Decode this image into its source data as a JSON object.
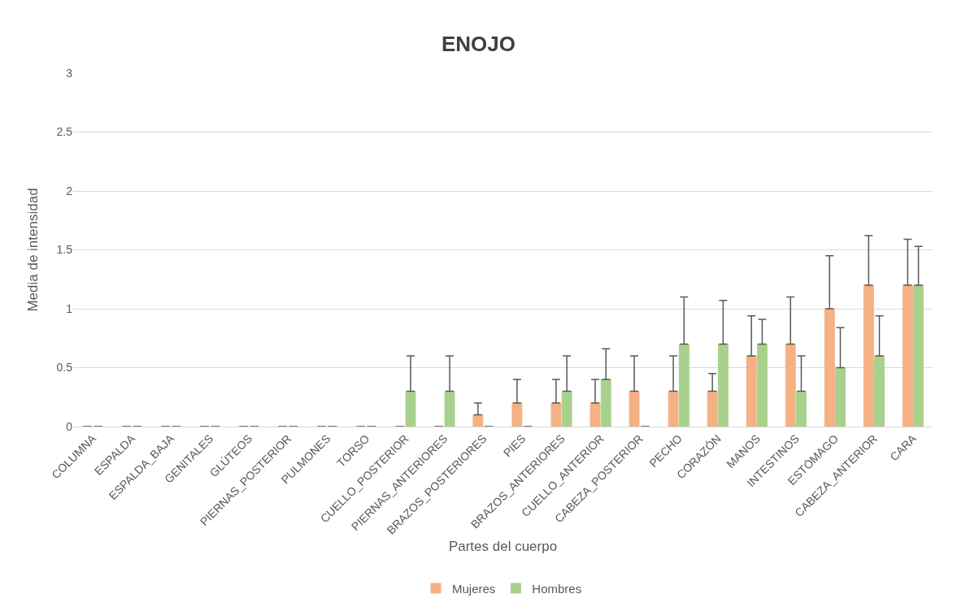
{
  "chart_data": {
    "type": "bar",
    "title": "ENOJO",
    "xlabel": "Partes del cuerpo",
    "ylabel": "Media de intensidad",
    "categories": [
      "COLUMNA",
      "ESPALDA",
      "ESPALDA_BAJA",
      "GENITALES",
      "GLÚTEOS",
      "PIERNAS_POSTERIOR",
      "PULMONES",
      "TORSO",
      "CUELLO_POSTERIOR",
      "PIERNAS_ANTERIORES",
      "BRAZOS_POSTERIORES",
      "PIES",
      "BRAZOS_ANTERIORES",
      "CUELLO_ANTERIOR",
      "CABEZA_POSTERIOR",
      "PECHO",
      "CORAZÓN",
      "MANOS",
      "INTESTINOS",
      "ESTÓMAGO",
      "CABEZA_ANTERIOR",
      "CARA"
    ],
    "series": [
      {
        "name": "Mujeres",
        "color": "#f4b183",
        "values": [
          0,
          0,
          0,
          0,
          0,
          0,
          0,
          0,
          0,
          0,
          0.1,
          0.2,
          0.2,
          0.2,
          0.3,
          0.3,
          0.3,
          0.6,
          0.7,
          1.0,
          1.2,
          1.2
        ],
        "errors": [
          null,
          null,
          null,
          null,
          null,
          null,
          null,
          null,
          null,
          null,
          [
            0.1,
            0.2
          ],
          [
            0.2,
            0.4
          ],
          [
            0.2,
            0.4
          ],
          [
            0.2,
            0.4
          ],
          [
            0.3,
            0.6
          ],
          [
            0.3,
            0.6
          ],
          [
            0.3,
            0.45
          ],
          [
            0.6,
            0.94
          ],
          [
            0.7,
            1.1
          ],
          [
            1.0,
            1.45
          ],
          [
            1.2,
            1.62
          ],
          [
            1.2,
            1.59
          ]
        ]
      },
      {
        "name": "Hombres",
        "color": "#a9d18e",
        "values": [
          0,
          0,
          0,
          0,
          0,
          0,
          0,
          0,
          0.3,
          0.3,
          0,
          0,
          0.3,
          0.4,
          0,
          0.7,
          0.7,
          0.7,
          0.3,
          0.5,
          0.6,
          1.2
        ],
        "errors": [
          null,
          null,
          null,
          null,
          null,
          null,
          null,
          null,
          [
            0.3,
            0.6
          ],
          [
            0.3,
            0.6
          ],
          null,
          null,
          [
            0.3,
            0.6
          ],
          [
            0.4,
            0.66
          ],
          null,
          [
            0.7,
            1.1
          ],
          [
            0.7,
            1.07
          ],
          [
            0.7,
            0.91
          ],
          [
            0.3,
            0.6
          ],
          [
            0.5,
            0.84
          ],
          [
            0.6,
            0.94
          ],
          [
            1.2,
            1.53
          ]
        ]
      }
    ],
    "ylim": [
      0,
      3
    ],
    "yticks": [
      0,
      0.5,
      1,
      1.5,
      2,
      2.5,
      3
    ],
    "grid": "y",
    "legend": "bottom"
  }
}
